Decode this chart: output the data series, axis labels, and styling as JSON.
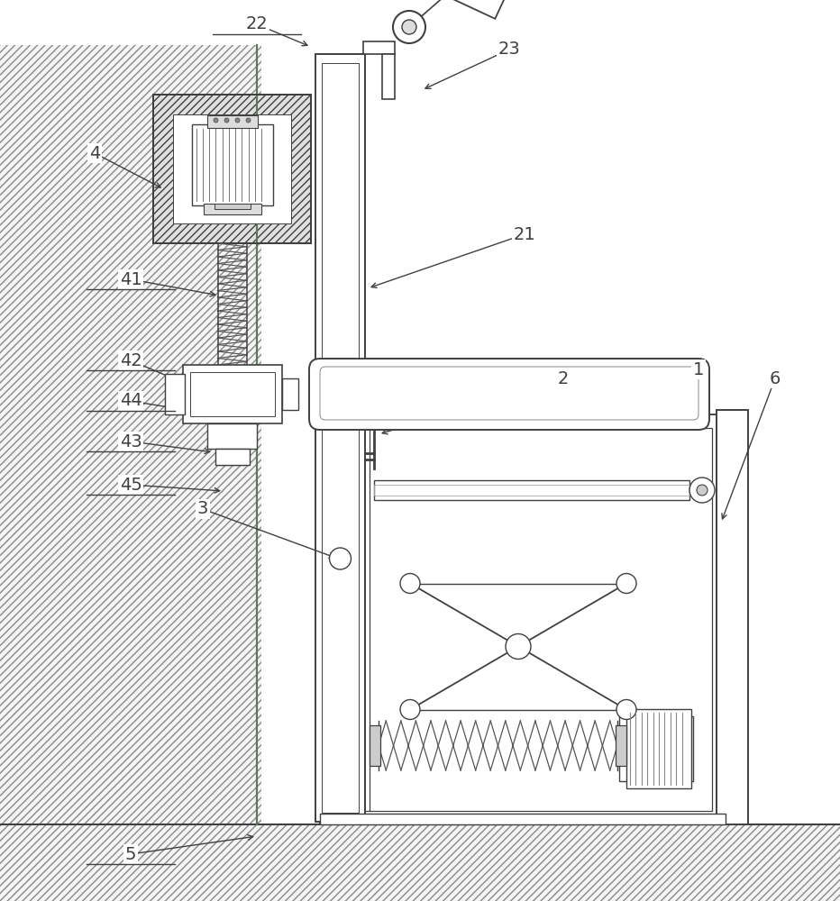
{
  "bg_color": "#ffffff",
  "lc": "#404040",
  "lc_thin": "#606060",
  "figsize": [
    9.32,
    10.0
  ],
  "dpi": 100,
  "xlim": [
    0,
    932
  ],
  "ylim": [
    0,
    1000
  ]
}
